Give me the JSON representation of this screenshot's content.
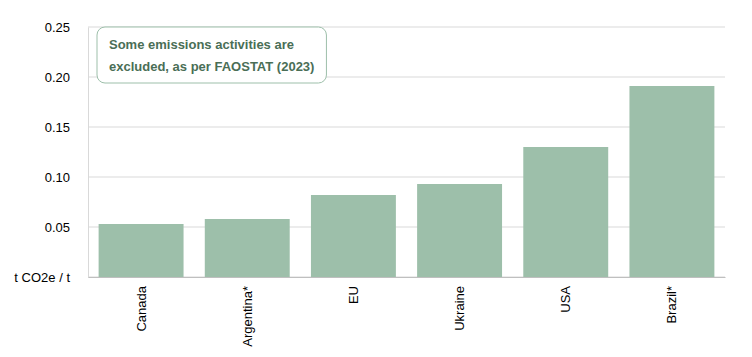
{
  "chart_data": {
    "type": "bar",
    "annotation": [
      "Some emissions activities are",
      "excluded, as per FAOSTAT (2023)"
    ],
    "categories": [
      "Canada",
      "Argentina*",
      "EU",
      "Ukraine",
      "USA",
      "Brazil*"
    ],
    "values": [
      0.053,
      0.058,
      0.082,
      0.093,
      0.13,
      0.191
    ],
    "color": "#9dbfaa",
    "ylim": [
      0,
      0.25
    ],
    "yticks": [
      {
        "value": 0,
        "label": "t CO2e / t"
      },
      0.05,
      {
        "value": 0.1,
        "label": "0.10"
      },
      0.15,
      {
        "value": 0.2,
        "label": "0.20"
      },
      0.25
    ],
    "grid": true
  }
}
